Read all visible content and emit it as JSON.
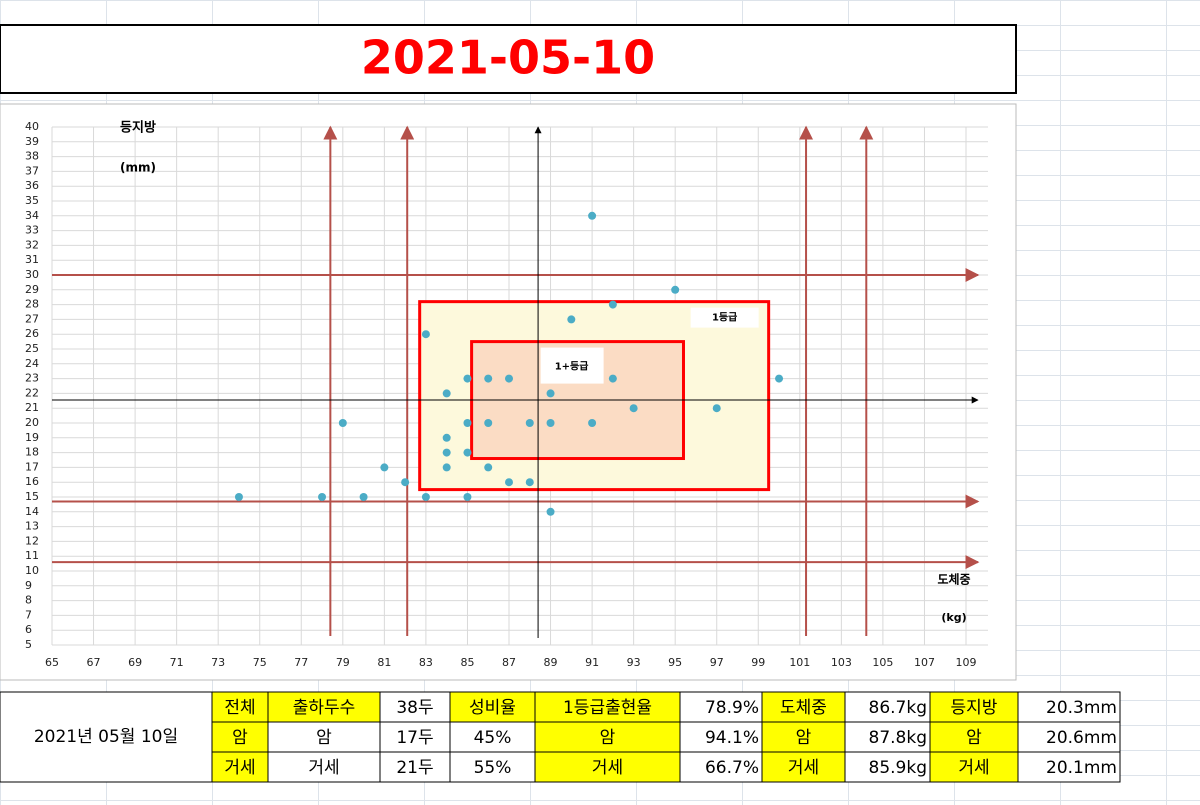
{
  "title": "2021-05-10",
  "chart_data": {
    "type": "scatter",
    "y_label": "등지방",
    "y_unit": "(mm)",
    "x_label": "도체중",
    "x_unit": "(kg)",
    "x": [
      74,
      78,
      79,
      80,
      81,
      82,
      83,
      83,
      84,
      84,
      84,
      84,
      85,
      85,
      85,
      85,
      86,
      86,
      86,
      87,
      87,
      88,
      88,
      89,
      89,
      89,
      90,
      91,
      91,
      92,
      92,
      93,
      95,
      97,
      100
    ],
    "values": [
      15,
      15,
      20,
      15,
      17,
      16,
      15,
      26,
      22,
      19,
      18,
      17,
      23,
      20,
      18,
      15,
      23,
      20,
      17,
      23,
      16,
      20,
      16,
      22,
      20,
      14,
      27,
      34,
      20,
      28,
      23,
      21,
      29,
      21,
      23
    ],
    "color": "#4bacc6",
    "xlim": [
      65,
      109
    ],
    "xticks": [
      65,
      67,
      69,
      71,
      73,
      75,
      77,
      79,
      81,
      83,
      85,
      87,
      89,
      91,
      93,
      95,
      97,
      99,
      101,
      103,
      105,
      107,
      109
    ],
    "ylim": [
      5,
      40
    ],
    "yticks": [
      5,
      6,
      7,
      8,
      9,
      10,
      11,
      12,
      13,
      14,
      15,
      16,
      17,
      18,
      19,
      20,
      21,
      22,
      23,
      24,
      25,
      26,
      27,
      28,
      29,
      30,
      31,
      32,
      33,
      34,
      35,
      36,
      37,
      38,
      39,
      40
    ],
    "grid": true,
    "axis_cross": {
      "x": 88.4,
      "y": 21.55
    },
    "vlines": [
      78.4,
      82.1,
      101.3,
      104.2
    ],
    "hlines": [
      30.0,
      14.7,
      10.6
    ],
    "regions": [
      {
        "label": "1등급",
        "x": [
          82.7,
          99.5
        ],
        "y": [
          15.5,
          28.2
        ]
      },
      {
        "label": "1+등급",
        "x": [
          85.2,
          95.4
        ],
        "y": [
          17.6,
          25.5
        ]
      }
    ]
  },
  "table": {
    "date": "2021년 05월 10일",
    "rows": [
      [
        "전체",
        "출하두수",
        "38두",
        "성비율",
        "1등급출현율",
        "78.9%",
        "도체중",
        "86.7kg",
        "등지방",
        "20.3mm"
      ],
      [
        "암",
        "암",
        "17두",
        "45%",
        "암",
        "94.1%",
        "암",
        "87.8kg",
        "암",
        "20.6mm"
      ],
      [
        "거세",
        "거세",
        "21두",
        "55%",
        "거세",
        "66.7%",
        "거세",
        "85.9kg",
        "거세",
        "20.1mm"
      ]
    ]
  }
}
